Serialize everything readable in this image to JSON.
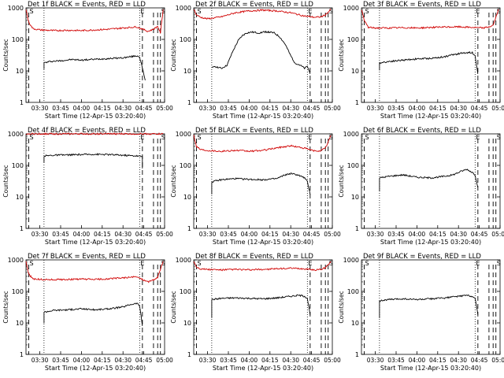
{
  "x_ticks": [
    "03:30",
    "03:45",
    "04:00",
    "04:15",
    "04:30",
    "04:45",
    "05:00"
  ],
  "y_ticks": [
    "1",
    "10",
    "100",
    "1000"
  ],
  "ylabel": "Counts/sec",
  "xlabel": "Start Time (12-Apr-15 03:20:40)",
  "legend_label": "BLACK = Events, RED = LLD",
  "colors": {
    "events": "#000000",
    "lld": "#d00000",
    "axes": "#000000"
  },
  "chart_data": [
    {
      "type": "line",
      "title": "Det 1f",
      "ylim": [
        1,
        1000
      ],
      "yscale": "log",
      "xlim_minutes": [
        0,
        100
      ],
      "markers": {
        "S": 2,
        "E": 82,
        "S2": 97
      },
      "dashed_x": [
        2,
        84,
        92,
        95,
        97
      ],
      "dotted_x": [
        13,
        82
      ],
      "series": [
        {
          "name": "Events",
          "x": [
            13,
            13,
            18,
            25,
            33,
            40,
            47,
            55,
            62,
            70,
            75,
            80,
            82,
            84,
            86
          ],
          "values": [
            12,
            18,
            20,
            21,
            23,
            22,
            23,
            24,
            25,
            26,
            28,
            30,
            28,
            12,
            5
          ]
        },
        {
          "name": "LLD",
          "x": [
            0,
            2,
            5,
            10,
            15,
            20,
            30,
            40,
            50,
            60,
            70,
            80,
            88,
            92,
            95,
            97,
            99
          ],
          "values": [
            900,
            350,
            220,
            200,
            195,
            190,
            195,
            190,
            200,
            210,
            230,
            250,
            180,
            210,
            260,
            160,
            900
          ]
        }
      ]
    },
    {
      "type": "line",
      "title": "Det 2f",
      "ylim": [
        1,
        1000
      ],
      "yscale": "log",
      "xlim_minutes": [
        0,
        100
      ],
      "markers": {
        "S": 2,
        "E": 82,
        "S2": 97
      },
      "dashed_x": [
        2,
        84,
        92,
        95,
        97
      ],
      "dotted_x": [
        13,
        82
      ],
      "series": [
        {
          "name": "Events",
          "x": [
            13,
            15,
            20,
            24,
            28,
            32,
            35,
            38,
            42,
            47,
            52,
            58,
            62,
            66,
            70,
            73,
            77,
            80,
            82,
            84
          ],
          "values": [
            12,
            14,
            12,
            15,
            40,
            90,
            130,
            160,
            170,
            160,
            175,
            160,
            120,
            70,
            30,
            18,
            15,
            12,
            14,
            8
          ]
        },
        {
          "name": "LLD",
          "x": [
            0,
            2,
            5,
            10,
            20,
            30,
            40,
            50,
            60,
            70,
            80,
            88,
            92,
            95,
            99
          ],
          "values": [
            900,
            600,
            500,
            450,
            520,
            700,
            800,
            850,
            800,
            700,
            550,
            500,
            520,
            600,
            900
          ]
        }
      ]
    },
    {
      "type": "line",
      "title": "Det 3f",
      "ylim": [
        1,
        1000
      ],
      "yscale": "log",
      "xlim_minutes": [
        0,
        100
      ],
      "markers": {
        "S": 2,
        "E": 82,
        "S2": 97
      },
      "dashed_x": [
        2,
        84,
        92,
        95,
        97
      ],
      "dotted_x": [
        13,
        82
      ],
      "series": [
        {
          "name": "Events",
          "x": [
            13,
            13,
            20,
            30,
            40,
            50,
            60,
            65,
            70,
            75,
            80,
            82,
            84
          ],
          "values": [
            10,
            18,
            20,
            22,
            24,
            25,
            28,
            32,
            35,
            38,
            38,
            30,
            8
          ]
        },
        {
          "name": "LLD",
          "x": [
            0,
            2,
            5,
            10,
            20,
            30,
            40,
            50,
            60,
            70,
            80,
            88,
            92,
            95,
            99
          ],
          "values": [
            900,
            400,
            240,
            230,
            230,
            235,
            230,
            240,
            245,
            250,
            240,
            230,
            250,
            280,
            900
          ]
        }
      ]
    },
    {
      "type": "line",
      "title": "Det 4f",
      "ylim": [
        1,
        1000
      ],
      "yscale": "log",
      "xlim_minutes": [
        0,
        100
      ],
      "markers": {
        "S": 2,
        "E": 82,
        "S2": 97
      },
      "dashed_x": [
        2,
        84,
        92,
        95,
        97
      ],
      "dotted_x": [
        13,
        82
      ],
      "series": [
        {
          "name": "Events",
          "x": [
            13,
            13,
            20,
            30,
            40,
            50,
            60,
            70,
            80,
            84,
            84
          ],
          "values": [
            120,
            200,
            210,
            215,
            220,
            225,
            220,
            210,
            200,
            190,
            80
          ]
        },
        {
          "name": "LLD",
          "x": [
            0,
            2,
            6,
            10,
            20,
            30,
            40,
            50,
            60,
            70,
            80,
            88,
            92,
            95,
            99
          ],
          "values": [
            900,
            1000,
            1000,
            1000,
            1000,
            1000,
            1000,
            1000,
            1000,
            1000,
            1000,
            1000,
            1000,
            1000,
            1000
          ]
        }
      ]
    },
    {
      "type": "line",
      "title": "Det 5f",
      "ylim": [
        1,
        1000
      ],
      "yscale": "log",
      "xlim_minutes": [
        0,
        100
      ],
      "markers": {
        "S": 2,
        "E": 82,
        "S2": 97
      },
      "dashed_x": [
        2,
        84,
        92,
        95,
        97
      ],
      "dotted_x": [
        13,
        82
      ],
      "series": [
        {
          "name": "Events",
          "x": [
            13,
            13,
            20,
            30,
            40,
            50,
            60,
            66,
            70,
            75,
            80,
            82,
            84
          ],
          "values": [
            12,
            30,
            35,
            38,
            36,
            35,
            38,
            50,
            55,
            50,
            40,
            30,
            12
          ]
        },
        {
          "name": "LLD",
          "x": [
            0,
            2,
            5,
            10,
            20,
            30,
            40,
            50,
            60,
            70,
            80,
            88,
            92,
            95,
            99
          ],
          "values": [
            900,
            400,
            320,
            300,
            280,
            300,
            280,
            300,
            360,
            420,
            350,
            280,
            300,
            350,
            900
          ]
        }
      ]
    },
    {
      "type": "line",
      "title": "Det 6f",
      "ylim": [
        1,
        1000
      ],
      "yscale": "log",
      "xlim_minutes": [
        0,
        100
      ],
      "markers": {
        "S": 2,
        "E": 82,
        "S2": 97
      },
      "dashed_x": [
        2,
        84,
        92,
        95,
        97
      ],
      "dotted_x": [
        13,
        82
      ],
      "series": [
        {
          "name": "Events",
          "x": [
            13,
            13,
            20,
            30,
            40,
            50,
            60,
            66,
            72,
            76,
            80,
            82,
            84
          ],
          "values": [
            15,
            40,
            45,
            50,
            42,
            40,
            45,
            50,
            65,
            75,
            60,
            50,
            20
          ]
        }
      ]
    },
    {
      "type": "line",
      "title": "Det 7f",
      "ylim": [
        1,
        1000
      ],
      "yscale": "log",
      "xlim_minutes": [
        0,
        100
      ],
      "markers": {
        "S": 2,
        "E": 82,
        "S2": 97
      },
      "dashed_x": [
        2,
        84,
        92,
        95,
        97
      ],
      "dotted_x": [
        13,
        82
      ],
      "series": [
        {
          "name": "Events",
          "x": [
            13,
            13,
            20,
            30,
            40,
            50,
            60,
            70,
            75,
            80,
            82,
            84
          ],
          "values": [
            10,
            22,
            25,
            26,
            28,
            26,
            28,
            32,
            38,
            42,
            35,
            8
          ]
        },
        {
          "name": "LLD",
          "x": [
            0,
            2,
            5,
            10,
            20,
            30,
            40,
            50,
            60,
            70,
            80,
            88,
            92,
            95,
            99
          ],
          "values": [
            900,
            350,
            250,
            240,
            235,
            240,
            245,
            240,
            250,
            270,
            290,
            200,
            230,
            280,
            900
          ]
        }
      ]
    },
    {
      "type": "line",
      "title": "Det 8f",
      "ylim": [
        1,
        1000
      ],
      "yscale": "log",
      "xlim_minutes": [
        0,
        100
      ],
      "markers": {
        "S": 2,
        "E": 82,
        "S2": 97
      },
      "dashed_x": [
        2,
        84,
        92,
        95,
        97
      ],
      "dotted_x": [
        13,
        82
      ],
      "series": [
        {
          "name": "Events",
          "x": [
            13,
            13,
            20,
            30,
            40,
            50,
            60,
            70,
            76,
            80,
            82,
            84
          ],
          "values": [
            15,
            55,
            60,
            62,
            60,
            58,
            62,
            70,
            75,
            70,
            60,
            18
          ]
        },
        {
          "name": "LLD",
          "x": [
            0,
            2,
            5,
            10,
            20,
            30,
            40,
            50,
            60,
            70,
            80,
            88,
            92,
            95,
            99
          ],
          "values": [
            900,
            600,
            520,
            500,
            480,
            500,
            480,
            500,
            520,
            540,
            520,
            480,
            500,
            560,
            900
          ]
        }
      ]
    },
    {
      "type": "line",
      "title": "Det 9f",
      "ylim": [
        1,
        1000
      ],
      "yscale": "log",
      "xlim_minutes": [
        0,
        100
      ],
      "markers": {
        "S": 2,
        "E": 82,
        "S2": 97
      },
      "dashed_x": [
        2,
        84,
        92,
        95,
        97
      ],
      "dotted_x": [
        13,
        82
      ],
      "series": [
        {
          "name": "Events",
          "x": [
            13,
            13,
            20,
            30,
            40,
            50,
            60,
            70,
            76,
            80,
            82,
            84
          ],
          "values": [
            15,
            50,
            55,
            58,
            55,
            58,
            62,
            70,
            75,
            70,
            60,
            18
          ]
        }
      ]
    }
  ]
}
